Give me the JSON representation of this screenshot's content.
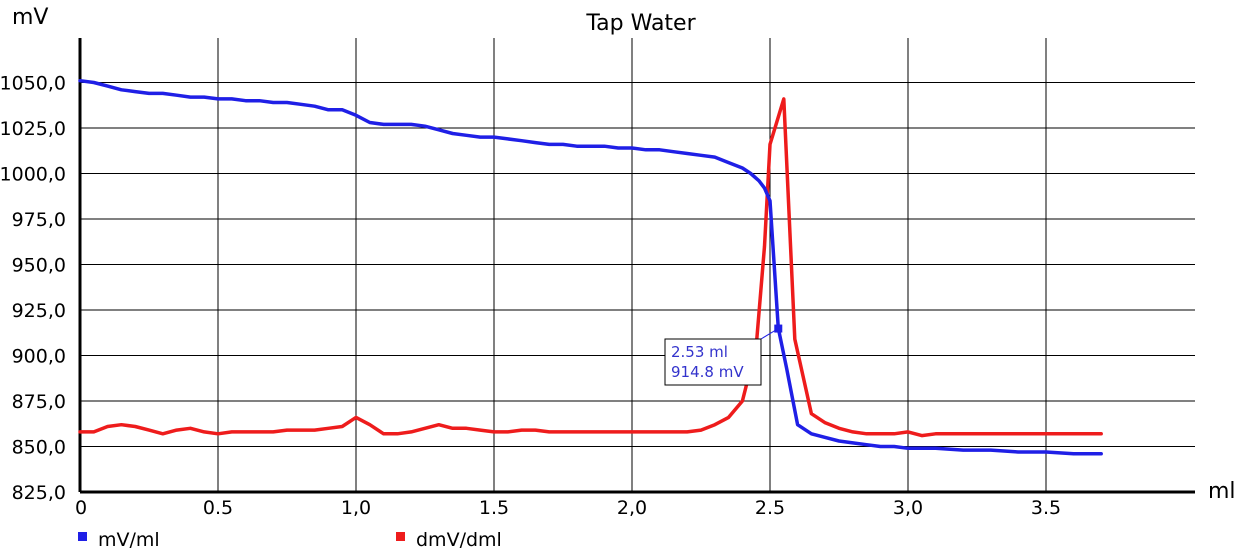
{
  "chart_data": {
    "type": "line",
    "title": "Tap Water",
    "ylabel": "mV",
    "xlabel": "ml",
    "xlim": [
      0,
      3.9
    ],
    "ylim": [
      825,
      1060
    ],
    "y_tick_values": [
      825,
      850,
      875,
      900,
      925,
      950,
      975,
      1000,
      1025,
      1050
    ],
    "y_tick_labels": [
      "825,0",
      "850,0",
      "875,0",
      "900,0",
      "925,0",
      "950,0",
      "975,0",
      "1000,0",
      "1025,0",
      "1050,0"
    ],
    "x_tick_values": [
      0,
      0.5,
      1.0,
      1.5,
      2.0,
      2.5,
      3.0,
      3.5
    ],
    "x_tick_labels": [
      "0",
      "0.5",
      "1,0",
      "1.5",
      "2,0",
      "2.5",
      "3,0",
      "3.5"
    ],
    "grid": true,
    "legend_position": "bottom-left",
    "series": [
      {
        "name": "mV/ml",
        "color": "#1f1fe6",
        "x": [
          0,
          0.05,
          0.1,
          0.15,
          0.2,
          0.25,
          0.3,
          0.35,
          0.4,
          0.45,
          0.5,
          0.55,
          0.6,
          0.65,
          0.7,
          0.75,
          0.8,
          0.85,
          0.9,
          0.95,
          1.0,
          1.05,
          1.1,
          1.15,
          1.2,
          1.25,
          1.3,
          1.35,
          1.4,
          1.45,
          1.5,
          1.55,
          1.6,
          1.65,
          1.7,
          1.75,
          1.8,
          1.85,
          1.9,
          1.95,
          2.0,
          2.05,
          2.1,
          2.15,
          2.2,
          2.25,
          2.3,
          2.35,
          2.4,
          2.43,
          2.46,
          2.48,
          2.5,
          2.53,
          2.56,
          2.6,
          2.65,
          2.7,
          2.75,
          2.8,
          2.85,
          2.9,
          2.95,
          3.0,
          3.1,
          3.2,
          3.3,
          3.4,
          3.5,
          3.6,
          3.7
        ],
        "y": [
          1051,
          1050,
          1048,
          1046,
          1045,
          1044,
          1044,
          1043,
          1042,
          1042,
          1041,
          1041,
          1040,
          1040,
          1039,
          1039,
          1038,
          1037,
          1035,
          1035,
          1032,
          1028,
          1027,
          1027,
          1027,
          1026,
          1024,
          1022,
          1021,
          1020,
          1020,
          1019,
          1018,
          1017,
          1016,
          1016,
          1015,
          1015,
          1015,
          1014,
          1014,
          1013,
          1013,
          1012,
          1011,
          1010,
          1009,
          1006,
          1003,
          1000,
          996,
          992,
          985,
          915,
          893,
          862,
          857,
          855,
          853,
          852,
          851,
          850,
          850,
          849,
          849,
          848,
          848,
          847,
          847,
          846,
          846
        ]
      },
      {
        "name": "dmV/dml",
        "color": "#ee1c1c",
        "x": [
          0,
          0.05,
          0.1,
          0.15,
          0.2,
          0.25,
          0.3,
          0.35,
          0.4,
          0.45,
          0.5,
          0.55,
          0.6,
          0.65,
          0.7,
          0.75,
          0.8,
          0.85,
          0.9,
          0.95,
          1.0,
          1.05,
          1.1,
          1.15,
          1.2,
          1.25,
          1.3,
          1.35,
          1.4,
          1.45,
          1.5,
          1.55,
          1.6,
          1.65,
          1.7,
          1.75,
          1.8,
          1.85,
          1.9,
          1.95,
          2.0,
          2.05,
          2.1,
          2.15,
          2.2,
          2.25,
          2.3,
          2.35,
          2.4,
          2.45,
          2.48,
          2.5,
          2.55,
          2.59,
          2.65,
          2.7,
          2.75,
          2.8,
          2.85,
          2.9,
          2.95,
          3.0,
          3.05,
          3.1,
          3.2,
          3.3,
          3.4,
          3.5,
          3.6,
          3.7
        ],
        "y": [
          858,
          858,
          861,
          862,
          861,
          859,
          857,
          859,
          860,
          858,
          857,
          858,
          858,
          858,
          858,
          859,
          859,
          859,
          860,
          861,
          866,
          862,
          857,
          857,
          858,
          860,
          862,
          860,
          860,
          859,
          858,
          858,
          859,
          859,
          858,
          858,
          858,
          858,
          858,
          858,
          858,
          858,
          858,
          858,
          858,
          859,
          862,
          866,
          875,
          905,
          960,
          1016,
          1041,
          909,
          868,
          863,
          860,
          858,
          857,
          857,
          857,
          858,
          856,
          857,
          857,
          857,
          857,
          857,
          857,
          857
        ]
      }
    ],
    "annotation": {
      "series": "mV/ml",
      "x": 2.53,
      "y": 914.8,
      "line1": "2.53 ml",
      "line2": "914.8 mV",
      "color": "#3333cc"
    }
  }
}
